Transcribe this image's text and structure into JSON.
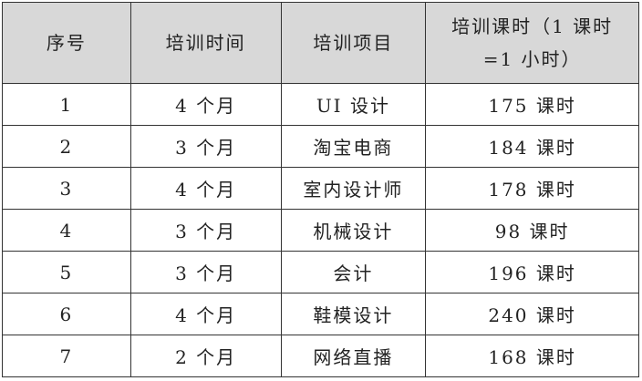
{
  "table": {
    "headers": [
      "序号",
      "培训时间",
      "培训项目",
      "培训课时（1 课时=1 小时）"
    ],
    "rows": [
      [
        "1",
        "4 个月",
        "UI 设计",
        "175 课时"
      ],
      [
        "2",
        "3 个月",
        "淘宝电商",
        "184 课时"
      ],
      [
        "3",
        "4 个月",
        "室内设计师",
        "178 课时"
      ],
      [
        "4",
        "3 个月",
        "机械设计",
        "98 课时"
      ],
      [
        "5",
        "3 个月",
        "会计",
        "196 课时"
      ],
      [
        "6",
        "4 个月",
        "鞋模设计",
        "240 课时"
      ],
      [
        "7",
        "2 个月",
        "网络直播",
        "168 课时"
      ]
    ]
  },
  "colors": {
    "header_bg": "#d8d8d8",
    "border": "#333333"
  }
}
